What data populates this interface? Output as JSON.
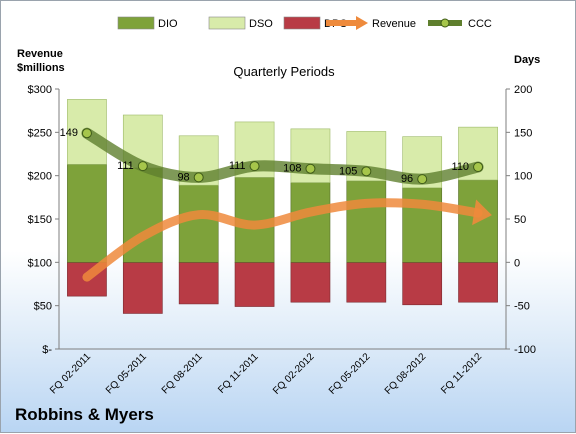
{
  "chart_data": {
    "type": "bar",
    "title": "Quarterly Periods",
    "company": "Robbins & Myers",
    "left_axis": {
      "label_line1": "Revenue",
      "label_line2": "$millions",
      "ylim": [
        0,
        300
      ],
      "ticks": [
        0,
        50,
        100,
        150,
        200,
        250,
        300
      ],
      "tick_labels": [
        "$-",
        "$50",
        "$100",
        "$150",
        "$200",
        "$250",
        "$300"
      ]
    },
    "right_axis": {
      "label": "Days",
      "ylim": [
        -100,
        200
      ],
      "ticks": [
        -100,
        -50,
        0,
        50,
        100,
        150,
        200
      ],
      "tick_labels": [
        "-100",
        "-50",
        "0",
        "50",
        "100",
        "150",
        "200"
      ]
    },
    "categories": [
      "FQ 02-2011",
      "FQ 05-2011",
      "FQ 08-2011",
      "FQ 11-2011",
      "FQ 02-2012",
      "FQ 05-2012",
      "FQ 08-2012",
      "FQ 11-2012"
    ],
    "series": [
      {
        "name": "DIO",
        "color": "#7ea23a",
        "values": [
          113,
          109,
          89,
          98,
          92,
          94,
          86,
          95
        ]
      },
      {
        "name": "DSO",
        "color": "#d8ebaa",
        "values": [
          75,
          61,
          57,
          64,
          62,
          57,
          59,
          61
        ]
      },
      {
        "name": "DPO",
        "color": "#b83b45",
        "values": [
          -39,
          -59,
          -48,
          -51,
          -46,
          -46,
          -49,
          -46
        ]
      },
      {
        "name": "Revenue",
        "color": "#ee8a3c",
        "values": [
          83,
          130,
          155,
          143,
          158,
          168,
          167,
          157
        ]
      },
      {
        "name": "CCC",
        "color": "#5f7f2e",
        "values": [
          149,
          111,
          98,
          111,
          108,
          105,
          96,
          110
        ]
      }
    ],
    "ccc_labels": [
      "149",
      "111",
      "98",
      "111",
      "108",
      "105",
      "96",
      "110"
    ],
    "legend": {
      "position": "top",
      "items": [
        "DIO",
        "DSO",
        "DPO",
        "Revenue",
        "CCC"
      ]
    },
    "grid": false
  }
}
